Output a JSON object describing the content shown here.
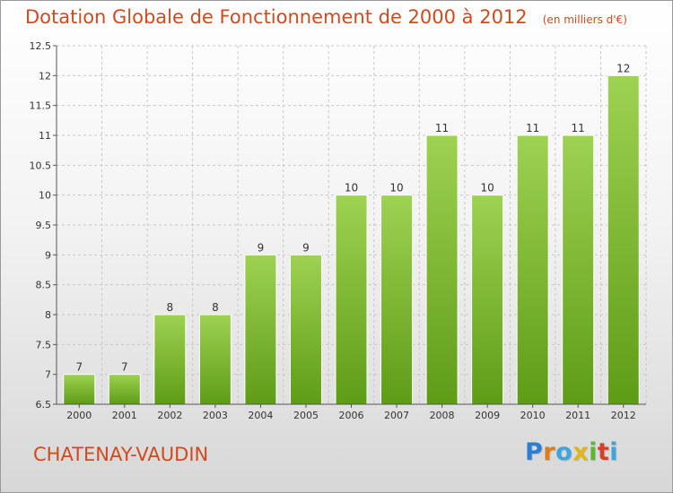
{
  "header": {
    "title": "Dotation Globale de Fonctionnement de 2000 à 2012",
    "unit": "(en milliers d'€)"
  },
  "footer": {
    "place": "CHATENAY-VAUDIN",
    "logo": "Proxiti",
    "logo_letters": [
      {
        "char": "P",
        "color": "#2a7fd4"
      },
      {
        "char": "r",
        "color": "#e07b1a"
      },
      {
        "char": "o",
        "color": "#3aa5e0"
      },
      {
        "char": "x",
        "color": "#e0b51a"
      },
      {
        "char": "i",
        "color": "#5cb82e"
      },
      {
        "char": "t",
        "color": "#d9402a"
      },
      {
        "char": "i",
        "color": "#3aa5e0"
      }
    ]
  },
  "colors": {
    "title": "#d04a1e",
    "bar_top": "#9ed252",
    "bar_bottom": "#5e9c16",
    "grid": "#c8c8c8",
    "axis": "#555555",
    "label": "#333333"
  },
  "chart_data": {
    "type": "bar",
    "title": "Dotation Globale de Fonctionnement de 2000 à 2012",
    "subtitle": "(en milliers d'€)",
    "xlabel": "",
    "ylabel": "",
    "categories": [
      "2000",
      "2001",
      "2002",
      "2003",
      "2004",
      "2005",
      "2006",
      "2007",
      "2008",
      "2009",
      "2010",
      "2011",
      "2012"
    ],
    "values": [
      7,
      7,
      8,
      8,
      9,
      9,
      10,
      10,
      11,
      10,
      11,
      11,
      12
    ],
    "ylim": [
      6.5,
      12.5
    ],
    "yticks": [
      6.5,
      7,
      7.5,
      8,
      8.5,
      9,
      9.5,
      10,
      10.5,
      11,
      11.5,
      12,
      12.5
    ],
    "ytick_labels": [
      "6.5",
      "7",
      "7.5",
      "8",
      "8.5",
      "9",
      "9.5",
      "10",
      "10.5",
      "11",
      "11.5",
      "12",
      "12.5"
    ],
    "data_labels": [
      "7",
      "7",
      "8",
      "8",
      "9",
      "9",
      "10",
      "10",
      "11",
      "10",
      "11",
      "11",
      "12"
    ],
    "grid": true,
    "legend": "none"
  }
}
